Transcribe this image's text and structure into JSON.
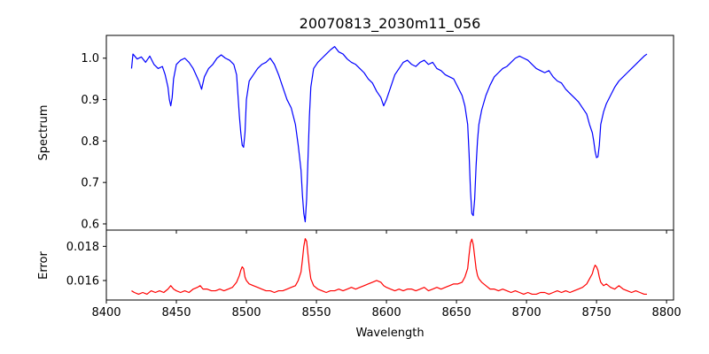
{
  "chart_data": [
    {
      "type": "line",
      "title": "20070813_2030m11_056",
      "xlabel": "",
      "ylabel": "Spectrum",
      "xlim": [
        8400,
        8805
      ],
      "ylim": [
        0.585,
        1.055
      ],
      "xticks": [
        8400,
        8450,
        8500,
        8550,
        8600,
        8650,
        8700,
        8750,
        8800
      ],
      "yticks": [
        0.6,
        0.7,
        0.8,
        0.9,
        1.0
      ],
      "ytick_labels": [
        "0.6",
        "0.7",
        "0.8",
        "0.9",
        "1.0"
      ],
      "show_x_tick_labels": false,
      "grid": false,
      "series": [
        {
          "color": "#0000ff",
          "x": [
            8418,
            8419,
            8422,
            8425,
            8428,
            8431,
            8434,
            8437,
            8440,
            8442,
            8444,
            8445,
            8446,
            8447,
            8448,
            8450,
            8453,
            8456,
            8459,
            8462,
            8464,
            8466,
            8468,
            8470,
            8473,
            8476,
            8479,
            8482,
            8485,
            8488,
            8491,
            8493,
            8494,
            8495,
            8496,
            8497,
            8498,
            8499,
            8500,
            8502,
            8505,
            8508,
            8511,
            8514,
            8517,
            8520,
            8523,
            8526,
            8529,
            8532,
            8535,
            8537,
            8539,
            8540,
            8541,
            8542,
            8543,
            8544,
            8545,
            8546,
            8548,
            8551,
            8554,
            8557,
            8560,
            8563,
            8566,
            8569,
            8572,
            8575,
            8578,
            8581,
            8584,
            8587,
            8590,
            8593,
            8596,
            8598,
            8600,
            8603,
            8606,
            8609,
            8612,
            8615,
            8618,
            8621,
            8624,
            8627,
            8630,
            8633,
            8636,
            8639,
            8642,
            8645,
            8648,
            8651,
            8654,
            8656,
            8658,
            8659,
            8660,
            8661,
            8662,
            8663,
            8664,
            8665,
            8666,
            8668,
            8671,
            8674,
            8677,
            8680,
            8683,
            8686,
            8689,
            8692,
            8695,
            8698,
            8701,
            8704,
            8707,
            8710,
            8713,
            8716,
            8719,
            8722,
            8725,
            8728,
            8731,
            8734,
            8737,
            8740,
            8743,
            8745,
            8747,
            8748,
            8749,
            8750,
            8751,
            8752,
            8753,
            8755,
            8757,
            8760,
            8763,
            8766,
            8769,
            8772,
            8775,
            8778,
            8781,
            8784,
            8786
          ],
          "y": [
            0.975,
            1.01,
            0.998,
            1.003,
            0.99,
            1.005,
            0.985,
            0.975,
            0.98,
            0.96,
            0.93,
            0.9,
            0.885,
            0.905,
            0.95,
            0.985,
            0.995,
            1.0,
            0.99,
            0.975,
            0.96,
            0.945,
            0.925,
            0.955,
            0.975,
            0.985,
            1.0,
            1.008,
            1.0,
            0.995,
            0.985,
            0.96,
            0.91,
            0.86,
            0.82,
            0.79,
            0.785,
            0.82,
            0.9,
            0.945,
            0.96,
            0.975,
            0.985,
            0.99,
            1.0,
            0.985,
            0.96,
            0.93,
            0.9,
            0.88,
            0.84,
            0.79,
            0.73,
            0.67,
            0.625,
            0.605,
            0.66,
            0.76,
            0.86,
            0.93,
            0.975,
            0.99,
            1.0,
            1.01,
            1.02,
            1.028,
            1.015,
            1.01,
            0.998,
            0.99,
            0.985,
            0.975,
            0.965,
            0.95,
            0.94,
            0.92,
            0.905,
            0.885,
            0.9,
            0.93,
            0.96,
            0.975,
            0.99,
            0.995,
            0.985,
            0.98,
            0.99,
            0.995,
            0.985,
            0.99,
            0.975,
            0.97,
            0.96,
            0.955,
            0.95,
            0.93,
            0.91,
            0.885,
            0.84,
            0.77,
            0.68,
            0.625,
            0.62,
            0.66,
            0.74,
            0.8,
            0.84,
            0.875,
            0.91,
            0.935,
            0.955,
            0.965,
            0.975,
            0.98,
            0.99,
            1.0,
            1.005,
            1.0,
            0.995,
            0.985,
            0.975,
            0.97,
            0.965,
            0.97,
            0.955,
            0.945,
            0.94,
            0.925,
            0.915,
            0.905,
            0.895,
            0.88,
            0.865,
            0.84,
            0.82,
            0.8,
            0.775,
            0.76,
            0.762,
            0.79,
            0.84,
            0.87,
            0.89,
            0.91,
            0.93,
            0.945,
            0.955,
            0.965,
            0.975,
            0.985,
            0.995,
            1.005,
            1.01
          ]
        }
      ]
    },
    {
      "type": "line",
      "title": "",
      "xlabel": "Wavelength",
      "ylabel": "Error",
      "xlim": [
        8400,
        8805
      ],
      "ylim": [
        0.01486,
        0.01895
      ],
      "xticks": [
        8400,
        8450,
        8500,
        8550,
        8600,
        8650,
        8700,
        8750,
        8800
      ],
      "xtick_labels": [
        "8400",
        "8450",
        "8500",
        "8550",
        "8600",
        "8650",
        "8700",
        "8750",
        "8800"
      ],
      "yticks": [
        0.016,
        0.018
      ],
      "ytick_labels": [
        "0.016",
        "0.018"
      ],
      "show_x_tick_labels": true,
      "grid": false,
      "series": [
        {
          "color": "#ff0000",
          "x": [
            8418,
            8420,
            8423,
            8426,
            8429,
            8432,
            8435,
            8438,
            8441,
            8444,
            8446,
            8448,
            8450,
            8453,
            8456,
            8459,
            8462,
            8465,
            8467,
            8469,
            8472,
            8475,
            8478,
            8481,
            8484,
            8487,
            8490,
            8493,
            8495,
            8496,
            8497,
            8498,
            8499,
            8500,
            8502,
            8505,
            8508,
            8511,
            8514,
            8517,
            8520,
            8523,
            8526,
            8529,
            8532,
            8535,
            8537,
            8539,
            8540,
            8541,
            8542,
            8543,
            8544,
            8545,
            8546,
            8548,
            8551,
            8554,
            8557,
            8560,
            8563,
            8566,
            8569,
            8572,
            8575,
            8578,
            8581,
            8584,
            8587,
            8590,
            8593,
            8596,
            8598,
            8600,
            8603,
            8606,
            8609,
            8612,
            8615,
            8618,
            8621,
            8624,
            8627,
            8630,
            8633,
            8636,
            8639,
            8642,
            8645,
            8648,
            8651,
            8654,
            8656,
            8658,
            8659,
            8660,
            8661,
            8662,
            8663,
            8664,
            8665,
            8666,
            8668,
            8671,
            8674,
            8677,
            8680,
            8683,
            8686,
            8689,
            8692,
            8695,
            8698,
            8701,
            8704,
            8707,
            8710,
            8713,
            8716,
            8719,
            8722,
            8725,
            8728,
            8731,
            8734,
            8737,
            8740,
            8743,
            8745,
            8747,
            8748,
            8749,
            8750,
            8751,
            8752,
            8753,
            8755,
            8757,
            8760,
            8763,
            8766,
            8769,
            8772,
            8775,
            8778,
            8781,
            8784,
            8786
          ],
          "y": [
            0.0154,
            0.0153,
            0.0152,
            0.0153,
            0.0152,
            0.0154,
            0.0153,
            0.0154,
            0.0153,
            0.0155,
            0.0157,
            0.0155,
            0.0154,
            0.0153,
            0.0154,
            0.0153,
            0.0155,
            0.0156,
            0.0157,
            0.0155,
            0.0155,
            0.0154,
            0.0154,
            0.0155,
            0.0154,
            0.0155,
            0.0156,
            0.0159,
            0.0163,
            0.0166,
            0.0168,
            0.0167,
            0.0162,
            0.016,
            0.0158,
            0.0157,
            0.0156,
            0.0155,
            0.0154,
            0.0154,
            0.0153,
            0.0154,
            0.0154,
            0.0155,
            0.0156,
            0.0157,
            0.016,
            0.0165,
            0.0172,
            0.018,
            0.01845,
            0.0183,
            0.0175,
            0.0167,
            0.0161,
            0.0157,
            0.0155,
            0.0154,
            0.0153,
            0.0154,
            0.0154,
            0.0155,
            0.0154,
            0.0155,
            0.0156,
            0.0155,
            0.0156,
            0.0157,
            0.0158,
            0.0159,
            0.016,
            0.0159,
            0.0157,
            0.0156,
            0.0155,
            0.0154,
            0.0155,
            0.0154,
            0.0155,
            0.0155,
            0.0154,
            0.0155,
            0.0156,
            0.0154,
            0.0155,
            0.0156,
            0.0155,
            0.0156,
            0.0157,
            0.0158,
            0.0158,
            0.0159,
            0.0162,
            0.0167,
            0.0175,
            0.0182,
            0.01842,
            0.0181,
            0.0174,
            0.0167,
            0.0163,
            0.0161,
            0.0159,
            0.0157,
            0.0155,
            0.0155,
            0.0154,
            0.0155,
            0.0154,
            0.0153,
            0.0154,
            0.0153,
            0.0152,
            0.0153,
            0.0152,
            0.0152,
            0.0153,
            0.0153,
            0.0152,
            0.0153,
            0.0154,
            0.0153,
            0.0154,
            0.0153,
            0.0154,
            0.0155,
            0.0156,
            0.0158,
            0.0161,
            0.0164,
            0.0167,
            0.0169,
            0.0168,
            0.0166,
            0.0162,
            0.0159,
            0.0157,
            0.0158,
            0.0156,
            0.0155,
            0.0157,
            0.0155,
            0.0154,
            0.0153,
            0.0154,
            0.0153,
            0.0152,
            0.0152
          ]
        }
      ]
    }
  ]
}
